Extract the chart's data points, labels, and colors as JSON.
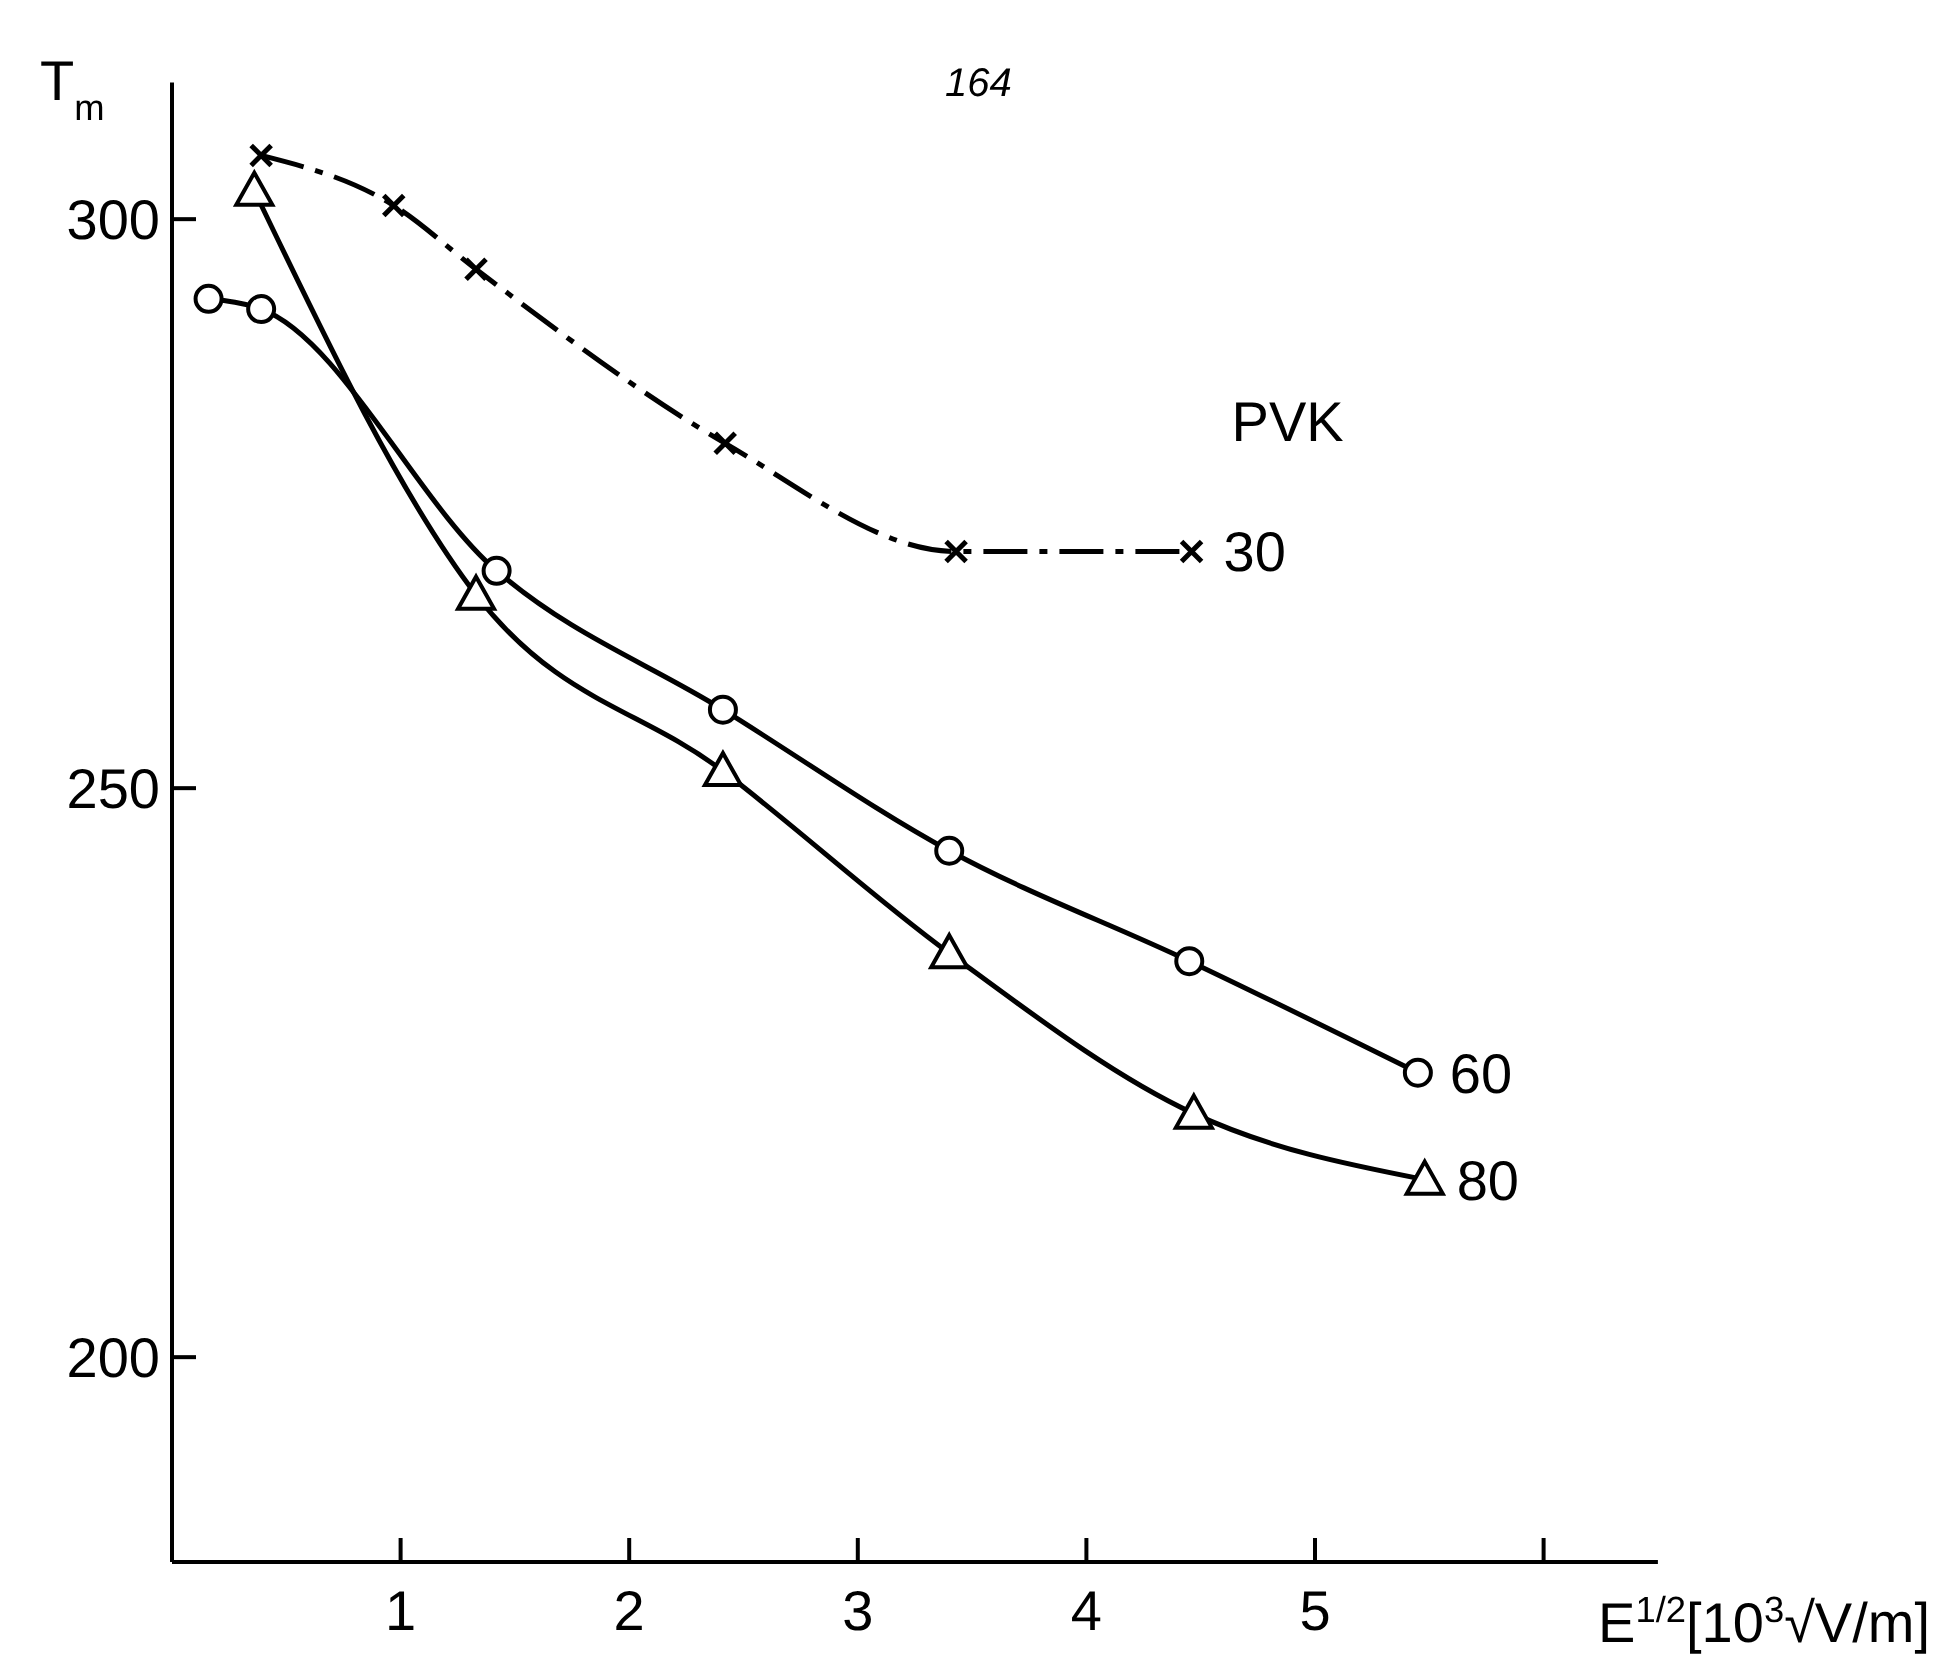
{
  "chart_data": {
    "type": "line",
    "xlabel": "E$^{1/2}$[10$^{3}$√V/m]",
    "ylabel": "T$_{m}$",
    "legend_title": "PVK",
    "annotations": [
      "164"
    ],
    "xlim": [
      0,
      6.5
    ],
    "ylim": [
      182,
      312
    ],
    "xticks": [
      1,
      2,
      3,
      4,
      5,
      {
        "value": 6,
        "label": null
      }
    ],
    "yticks": [
      200,
      250,
      300
    ],
    "grid": false,
    "series": [
      {
        "name": "30",
        "color": "#000000",
        "marker": "cross",
        "line_style": "dashed",
        "x": [
          0.39,
          0.97,
          1.33,
          2.42,
          3.43,
          4.46
        ],
        "values": [
          305.6,
          301.2,
          295.6,
          280.3,
          270.8,
          270.8
        ]
      },
      {
        "name": "60",
        "color": "#000000",
        "marker": "circle",
        "line_style": "solid",
        "x": [
          0.16,
          0.39,
          1.42,
          2.41,
          3.4,
          4.45,
          5.45
        ],
        "values": [
          293,
          292.1,
          269.1,
          256.9,
          244.5,
          234.8,
          225
        ]
      },
      {
        "name": "80",
        "color": "#000000",
        "marker": "triangle",
        "line_style": "solid",
        "x": [
          0.36,
          1.33,
          2.41,
          3.4,
          4.47,
          5.48
        ],
        "values": [
          302.5,
          267,
          251.5,
          235.5,
          221.4,
          215.6
        ]
      }
    ]
  }
}
